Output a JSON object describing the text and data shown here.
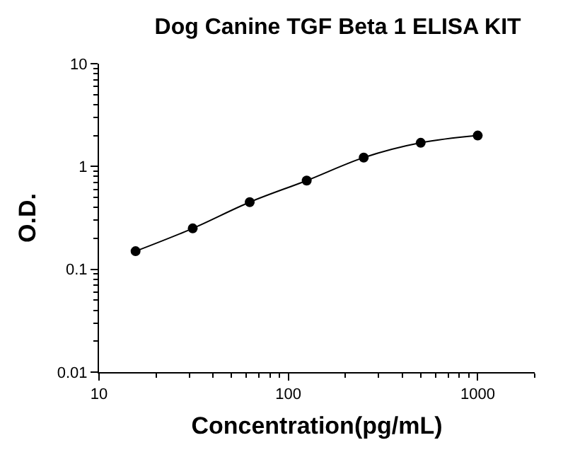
{
  "chart_data": {
    "type": "line",
    "title": "Dog Canine TGF Beta 1 ELISA KIT",
    "xlabel": "Concentration(pg/mL)",
    "ylabel": "O.D.",
    "x": [
      15.6,
      31.25,
      62.5,
      125,
      250,
      500,
      1000
    ],
    "series": [
      {
        "color": "#000000",
        "values": [
          0.15,
          0.25,
          0.45,
          0.73,
          1.22,
          1.7,
          2.0
        ]
      }
    ],
    "log": "xy",
    "xlim": [
      10,
      2000
    ],
    "xticks": [
      10,
      100,
      1000
    ],
    "ylim": [
      0.01,
      10
    ],
    "yticks": [
      0.01,
      0.1,
      1,
      10
    ],
    "grid": false,
    "marker": "circle",
    "line_style": "solid"
  }
}
